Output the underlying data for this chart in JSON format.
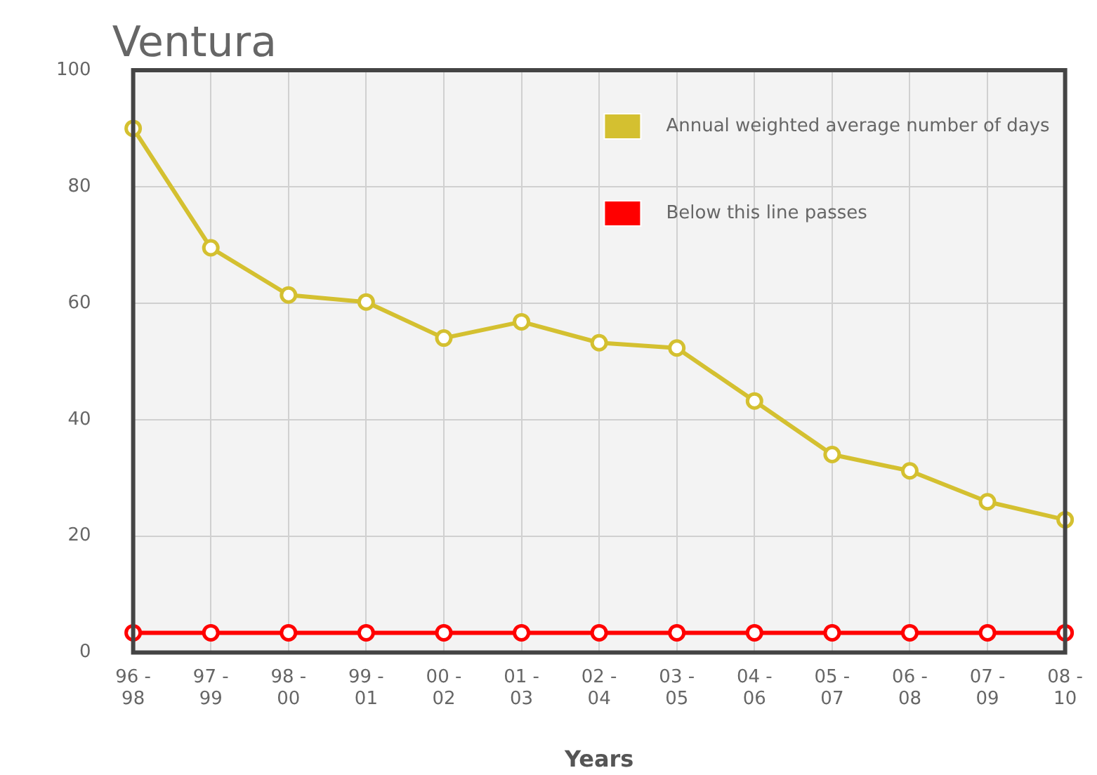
{
  "chart_data": {
    "type": "line",
    "title": "Ventura",
    "xlabel": "Years",
    "categories": [
      "96 -\n98",
      "97 -\n99",
      "98 -\n00",
      "99 -\n01",
      "00 -\n02",
      "01 -\n03",
      "02 -\n04",
      "03 -\n05",
      "04 -\n06",
      "05 -\n07",
      "06 -\n08",
      "07 -\n09",
      "08 -\n10"
    ],
    "series": [
      {
        "name": "Annual weighted average number of days",
        "color": "#d4c030",
        "values": [
          90,
          69.5,
          61.4,
          60.2,
          54,
          56.8,
          53.2,
          52.3,
          43.2,
          34,
          31.2,
          25.9,
          22.8
        ]
      },
      {
        "name": "Below this line passes",
        "color": "#ff0000",
        "values": [
          3.4,
          3.4,
          3.4,
          3.4,
          3.4,
          3.4,
          3.4,
          3.4,
          3.4,
          3.4,
          3.4,
          3.4,
          3.4
        ]
      }
    ],
    "ylim": [
      0,
      100
    ],
    "yticks": [
      0,
      20,
      40,
      60,
      80,
      100
    ],
    "grid": true,
    "legend": "top right",
    "marker": "circle",
    "line_style": "solid"
  }
}
